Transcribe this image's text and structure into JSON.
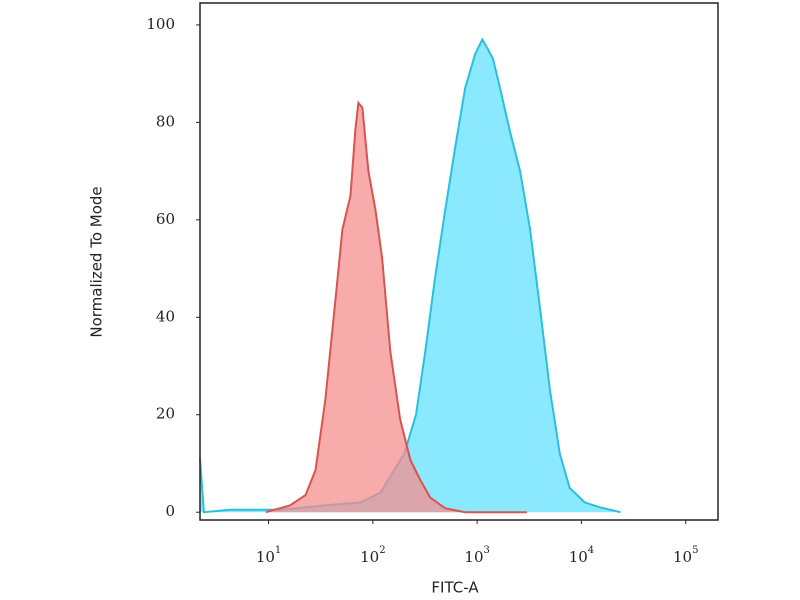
{
  "chart_data": {
    "type": "area",
    "xlabel": "FITC-A",
    "ylabel": "Normalized To Mode",
    "xscale": "log",
    "xlim": [
      2.2,
      204000
    ],
    "ylim": [
      -1.6,
      104.5
    ],
    "xticks": [
      {
        "value": 10,
        "label": "10",
        "sup": "1"
      },
      {
        "value": 100,
        "label": "10",
        "sup": "2"
      },
      {
        "value": 1000,
        "label": "10",
        "sup": "3"
      },
      {
        "value": 10000,
        "label": "10",
        "sup": "4"
      },
      {
        "value": 100000,
        "label": "10",
        "sup": "5"
      }
    ],
    "yticks": [
      0,
      20,
      40,
      60,
      80,
      100
    ],
    "series": [
      {
        "color": "#29c0dc",
        "fill": "#8ae8ff",
        "x": [
          2.2,
          2.4,
          4.3,
          13,
          39,
          76,
          118,
          164,
          200,
          259,
          318,
          394,
          494,
          618,
          767,
          955,
          1120,
          1270,
          1420,
          1660,
          2070,
          2580,
          3220,
          4000,
          5000,
          6200,
          7700,
          10800,
          15000,
          23700
        ],
        "values": [
          11,
          0,
          0.5,
          0.5,
          1.5,
          2,
          4,
          9,
          12,
          20,
          33,
          48,
          62,
          75,
          87,
          94,
          97,
          95,
          93,
          87,
          78,
          70,
          58,
          42,
          25,
          12,
          5,
          2,
          1,
          0
        ]
      },
      {
        "color": "#d9534f",
        "fill": "#f48f8f",
        "x": [
          9.4,
          16,
          22.6,
          28.2,
          35,
          43.7,
          51,
          61,
          68,
          72.6,
          79.4,
          90.6,
          106,
          123,
          147,
          183,
          229,
          285,
          355,
          494,
          767,
          3000
        ],
        "values": [
          0,
          1.4,
          3.5,
          8.6,
          23,
          43.5,
          58,
          65,
          78.6,
          84,
          83,
          70,
          62,
          52,
          33,
          19,
          10.7,
          6.6,
          3,
          0.8,
          0,
          0
        ]
      }
    ]
  }
}
